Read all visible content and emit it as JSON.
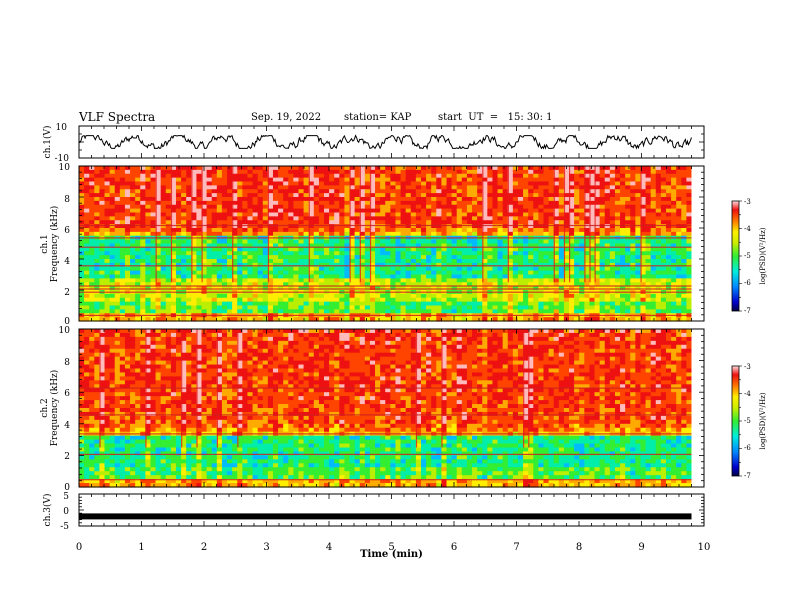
{
  "header": {
    "title": "VLF Spectra",
    "date": "Sep. 19, 2022",
    "station": "station= KAP",
    "start": "start  UT  =   15: 30: 1"
  },
  "colors": {
    "spectrogram_scale": [
      "#0000aa",
      "#0044ff",
      "#00bbff",
      "#00eeaa",
      "#33ee33",
      "#bbee00",
      "#ffee00",
      "#ffaa00",
      "#ff4400",
      "#ee1111",
      "#ffbbbb"
    ]
  },
  "chart_data": [
    {
      "type": "line",
      "name": "ch1-waveform",
      "ylabel": "ch.1(V)",
      "ylim": [
        -10,
        10
      ],
      "y_ticks": [
        "10",
        "-10"
      ],
      "xlim": [
        0,
        10
      ],
      "x_extent": [
        0,
        9.8
      ],
      "y_range_approx": [
        -4,
        4
      ]
    },
    {
      "type": "heatmap",
      "name": "ch1-spectrogram",
      "ylabel": "ch.1\nFrequency (kHz)",
      "ylabel_lines": [
        "ch.1",
        "Frequency  (kHz)"
      ],
      "ylim": [
        0,
        10
      ],
      "y_ticks": [
        "0",
        "2",
        "4",
        "6",
        "8",
        "10"
      ],
      "xlim": [
        0,
        10
      ],
      "x_extent": [
        0,
        9.8
      ],
      "colorbar": {
        "label": "log(PSD)(V²/Hz)",
        "range": [
          -7,
          -3
        ],
        "ticks": [
          "-3",
          "-4",
          "-5",
          "-6",
          "-7"
        ]
      },
      "features": {
        "strong_band_khz": [
          6,
          10
        ],
        "weak_band_khz": [
          2.8,
          5.5
        ],
        "lines_khz": [
          0.4,
          1.9,
          2.1,
          2.3,
          3.6,
          4.8,
          5.4,
          6.2
        ]
      }
    },
    {
      "type": "heatmap",
      "name": "ch2-spectrogram",
      "ylabel": "ch.2\nFrequency (kHz)",
      "ylabel_lines": [
        "ch.2",
        "Frequency  (kHz)"
      ],
      "ylim": [
        0,
        10
      ],
      "y_ticks": [
        "0",
        "2",
        "4",
        "6",
        "8",
        "10"
      ],
      "xlim": [
        0,
        10
      ],
      "x_extent": [
        0,
        9.8
      ],
      "colorbar": {
        "label": "log(PSD)(V²/Hz)",
        "range": [
          -7,
          -3
        ],
        "ticks": [
          "-3",
          "-4",
          "-5",
          "-6",
          "-7"
        ]
      },
      "features": {
        "strong_band_khz": [
          4,
          10
        ],
        "weak_band_khz": [
          1.2,
          3.3
        ],
        "lines_khz": [
          0.5,
          2.1,
          3.4,
          4.6,
          6.3
        ]
      }
    },
    {
      "type": "line",
      "name": "ch3-waveform",
      "ylabel": "ch.3(V)",
      "ylim": [
        -5,
        5
      ],
      "y_ticks": [
        "5",
        "0",
        "-5"
      ],
      "xlim": [
        0,
        10
      ],
      "x_extent": [
        0,
        9.8
      ],
      "y_value_approx": -2
    }
  ],
  "xaxis": {
    "label": "Time  (min)",
    "ticks": [
      "0",
      "1",
      "2",
      "3",
      "4",
      "5",
      "6",
      "7",
      "8",
      "9",
      "10"
    ]
  }
}
